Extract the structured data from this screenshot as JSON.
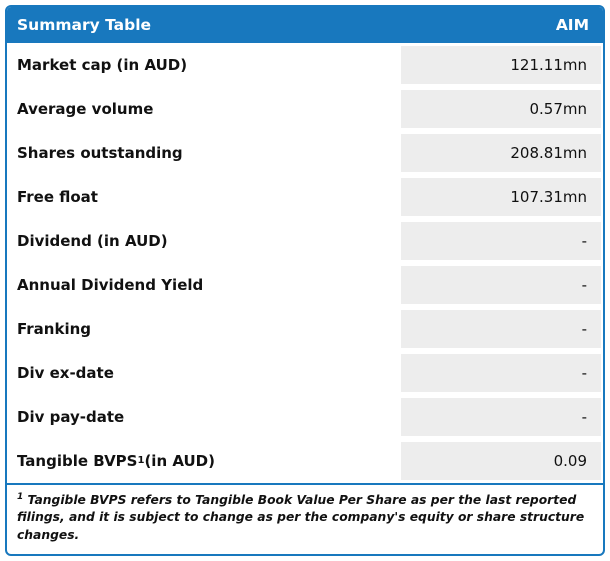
{
  "colors": {
    "header_bg": "#1878BE",
    "border": "#1878BE",
    "value_bg": "#EDEDED",
    "header_text": "#FFFFFF"
  },
  "table": {
    "header": {
      "title": "Summary Table",
      "column": "AIM"
    },
    "rows": [
      {
        "label": "Market cap (in AUD)",
        "value": "121.11mn"
      },
      {
        "label": "Average volume",
        "value": "0.57mn"
      },
      {
        "label": "Shares outstanding",
        "value": "208.81mn"
      },
      {
        "label": "Free float",
        "value": "107.31mn"
      },
      {
        "label": "Dividend (in AUD)",
        "value": "-"
      },
      {
        "label": "Annual Dividend Yield",
        "value": "-"
      },
      {
        "label": "Franking",
        "value": "-"
      },
      {
        "label": "Div ex-date",
        "value": "-"
      },
      {
        "label": "Div pay-date",
        "value": "-"
      },
      {
        "label": "Tangible BVPS",
        "sup": "1",
        "label_suffix": " (in AUD)",
        "value": "0.09"
      }
    ],
    "footnote": {
      "sup": "1",
      "text": " Tangible BVPS refers to Tangible Book Value Per Share as per the last reported filings, and it is subject to change as per the company's equity or share structure changes."
    }
  }
}
